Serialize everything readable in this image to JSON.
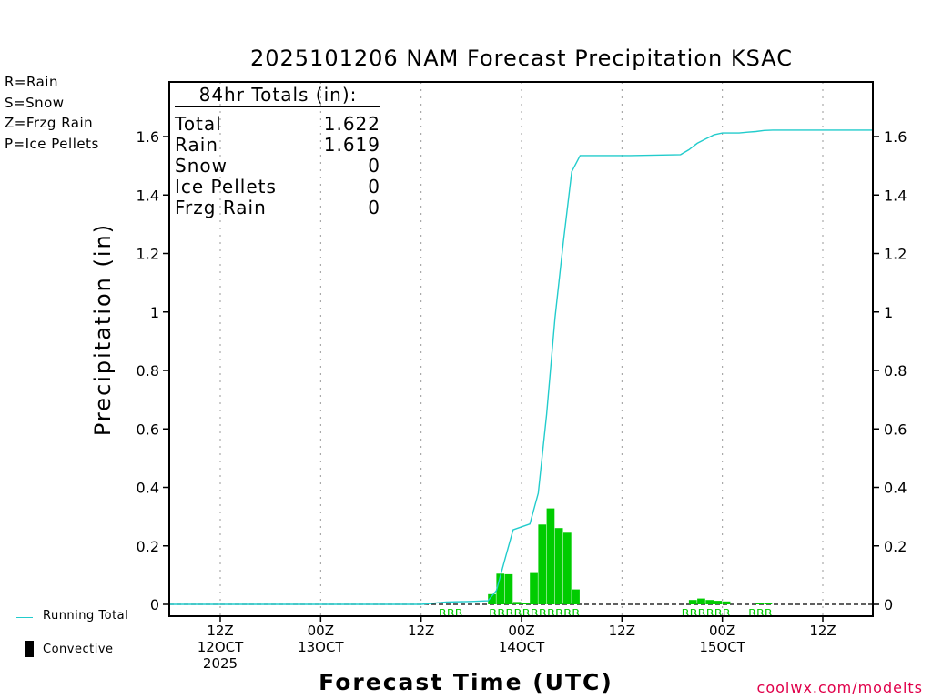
{
  "title": "2025101206 NAM Forecast Precipitation KSAC",
  "type_key": [
    {
      "label": "R=Rain",
      "color": "#00cc00"
    },
    {
      "label": "S=Snow",
      "color": "#3344dd"
    },
    {
      "label": "Z=Frzg Rain",
      "color": "#ee8822"
    },
    {
      "label": "P=Ice Pellets",
      "color": "#ee1188"
    }
  ],
  "totals": {
    "title": "84hr Totals (in):",
    "rows": [
      {
        "label": "Total",
        "value": "1.622"
      },
      {
        "label": "Rain",
        "value": "1.619"
      },
      {
        "label": "Snow",
        "value": "0"
      },
      {
        "label": "Ice Pellets",
        "value": "0"
      },
      {
        "label": "Frzg Rain",
        "value": "0"
      }
    ]
  },
  "legend": {
    "running_total": "Running Total",
    "convective": "Convective"
  },
  "credit": "coolwx.com/modelts",
  "chart_data": {
    "type": "bar",
    "title": "2025101206 NAM Forecast Precipitation KSAC",
    "xlabel": "Forecast Time (UTC)",
    "ylabel": "Precipitation (in)",
    "ylim": [
      0,
      1.8
    ],
    "xlim": [
      0,
      84
    ],
    "yticks": [
      0,
      0.2,
      0.4,
      0.6,
      0.8,
      1,
      1.2,
      1.4,
      1.6
    ],
    "ytick_labels": [
      "0",
      "0.2",
      "0.4",
      "0.6",
      "0.8",
      "1",
      "1.2",
      "1.4",
      "1.6"
    ],
    "xticks": [
      {
        "x": 6,
        "lines": [
          "12Z",
          "12OCT",
          "2025"
        ]
      },
      {
        "x": 18,
        "lines": [
          "00Z",
          "13OCT"
        ]
      },
      {
        "x": 30,
        "lines": [
          "12Z"
        ]
      },
      {
        "x": 42,
        "lines": [
          "00Z",
          "14OCT"
        ]
      },
      {
        "x": 54,
        "lines": [
          "12Z"
        ]
      },
      {
        "x": 66,
        "lines": [
          "00Z",
          "15OCT"
        ]
      },
      {
        "x": 78,
        "lines": [
          "12Z"
        ]
      }
    ],
    "grid": "vertical dotted at tick times",
    "bar_color": "#00cc00",
    "bars": [
      {
        "x": 39,
        "y": 0.035
      },
      {
        "x": 40,
        "y": 0.105
      },
      {
        "x": 41,
        "y": 0.103
      },
      {
        "x": 42,
        "y": 0.008
      },
      {
        "x": 43,
        "y": 0.005
      },
      {
        "x": 44,
        "y": 0.107
      },
      {
        "x": 45,
        "y": 0.273
      },
      {
        "x": 46,
        "y": 0.328
      },
      {
        "x": 47,
        "y": 0.261
      },
      {
        "x": 48,
        "y": 0.245
      },
      {
        "x": 49,
        "y": 0.051
      },
      {
        "x": 63,
        "y": 0.015
      },
      {
        "x": 64,
        "y": 0.02
      },
      {
        "x": 65,
        "y": 0.015
      },
      {
        "x": 66,
        "y": 0.012
      },
      {
        "x": 67,
        "y": 0.01
      },
      {
        "x": 71,
        "y": 0.003
      },
      {
        "x": 72,
        "y": 0.005
      }
    ],
    "series": [
      {
        "name": "Running Total",
        "color": "#22cccc",
        "x": [
          0,
          30,
          33,
          36,
          38,
          39,
          40,
          41,
          43,
          44,
          45,
          46,
          47,
          48,
          49,
          55,
          61,
          62,
          63,
          64,
          65,
          66,
          68,
          69,
          70,
          71,
          72,
          84
        ],
        "y": [
          0,
          0,
          0.008,
          0.01,
          0.012,
          0.047,
          0.152,
          0.255,
          0.275,
          0.38,
          0.65,
          0.98,
          1.24,
          1.48,
          1.535,
          1.535,
          1.538,
          1.555,
          1.577,
          1.592,
          1.606,
          1.612,
          1.612,
          1.615,
          1.617,
          1.621,
          1.622,
          1.622
        ]
      }
    ],
    "ptype_rows": [
      {
        "start": 33,
        "end": 35,
        "text": "RRR",
        "color": "#00cc00"
      },
      {
        "start": 39,
        "end": 49,
        "text": "RRRRRRRRRRR",
        "color": "#00cc00"
      },
      {
        "start": 62,
        "end": 67,
        "text": "RRRRRR",
        "color": "#00cc00"
      },
      {
        "start": 70,
        "end": 72,
        "text": "RRR",
        "color": "#00cc00"
      }
    ]
  }
}
